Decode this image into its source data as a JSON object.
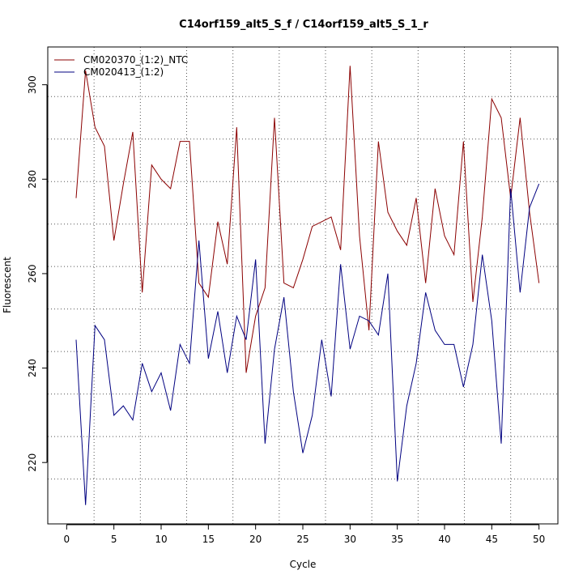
{
  "chart_data": {
    "type": "line",
    "title": "C14orf159_alt5_S_f / C14orf159_alt5_S_1_r",
    "xlabel": "Cycle",
    "ylabel": "Fluorescent",
    "xlim": [
      -2,
      52
    ],
    "ylim": [
      207,
      308
    ],
    "xticks": [
      0,
      5,
      10,
      15,
      20,
      25,
      30,
      35,
      40,
      45,
      50
    ],
    "yticks": [
      220,
      240,
      260,
      280,
      300
    ],
    "grid_x": [
      2.9,
      7.8,
      12.7,
      17.6,
      22.5,
      27.4,
      32.3,
      37.2,
      42.1,
      47.0
    ],
    "grid_y": [
      216.5,
      225.5,
      234.5,
      243.5,
      252.5,
      261.5,
      270.5,
      279.5,
      288.5,
      297.5
    ],
    "legend_position": "top-left",
    "series": [
      {
        "name": "CM020370_(1:2)_NTC",
        "color": "#8b0000",
        "x": [
          1,
          2,
          3,
          4,
          5,
          6,
          7,
          8,
          9,
          10,
          11,
          12,
          13,
          14,
          15,
          16,
          17,
          18,
          19,
          20,
          21,
          22,
          23,
          24,
          25,
          26,
          27,
          28,
          29,
          30,
          31,
          32,
          33,
          34,
          35,
          36,
          37,
          38,
          39,
          40,
          41,
          42,
          43,
          44,
          45,
          46,
          47,
          48,
          49,
          50
        ],
        "values": [
          276,
          303,
          291,
          287,
          267,
          279,
          290,
          256,
          283,
          280,
          278,
          288,
          288,
          258,
          255,
          271,
          262,
          291,
          239,
          251,
          257,
          293,
          258,
          257,
          263,
          270,
          271,
          272,
          265,
          304,
          268,
          248,
          288,
          273,
          269,
          266,
          276,
          258,
          278,
          268,
          264,
          288,
          254,
          272,
          297,
          293,
          276,
          293,
          273,
          258
        ]
      },
      {
        "name": "CM020413_(1:2)",
        "color": "#000080",
        "x": [
          1,
          2,
          3,
          4,
          5,
          6,
          7,
          8,
          9,
          10,
          11,
          12,
          13,
          14,
          15,
          16,
          17,
          18,
          19,
          20,
          21,
          22,
          23,
          24,
          25,
          26,
          27,
          28,
          29,
          30,
          31,
          32,
          33,
          34,
          35,
          36,
          37,
          38,
          39,
          40,
          41,
          42,
          43,
          44,
          45,
          46,
          47,
          48,
          49,
          50
        ],
        "values": [
          246,
          211,
          249,
          246,
          230,
          232,
          229,
          241,
          235,
          239,
          231,
          245,
          241,
          267,
          242,
          252,
          239,
          251,
          246,
          263,
          224,
          244,
          255,
          235,
          222,
          230,
          246,
          234,
          262,
          244,
          251,
          250,
          247,
          260,
          216,
          232,
          241,
          256,
          248,
          245,
          245,
          236,
          245,
          264,
          250,
          224,
          278,
          256,
          274,
          279
        ]
      }
    ]
  }
}
